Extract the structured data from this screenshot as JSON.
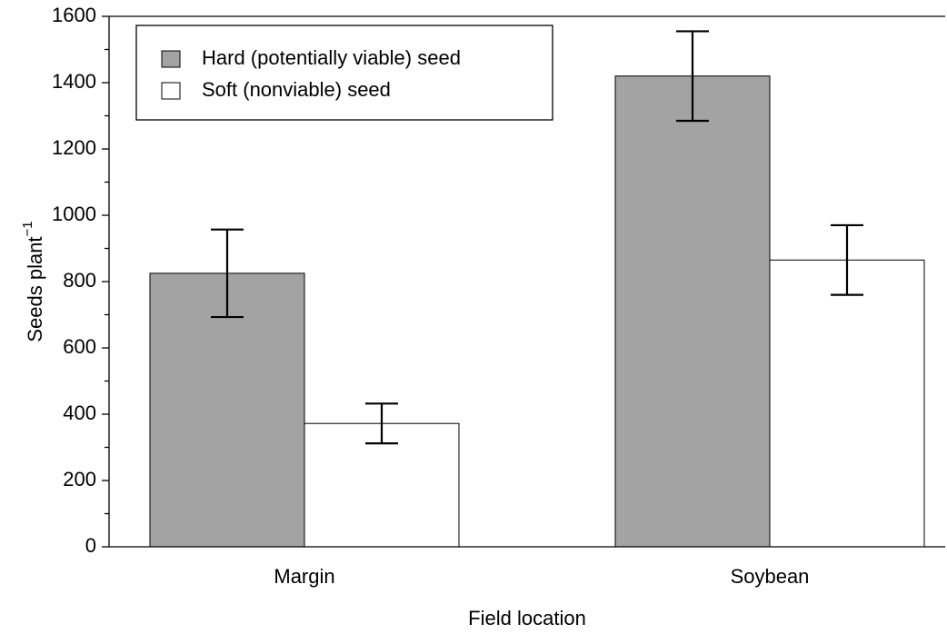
{
  "chart_data": {
    "type": "bar",
    "x_label": "Field location",
    "y_label": "Seeds plant",
    "y_label_superscript": "−1",
    "categories": [
      "Margin",
      "Soybean"
    ],
    "series": [
      {
        "name": "Hard (potentially viable) seed",
        "color": "#a3a3a3",
        "values": [
          825,
          1420
        ],
        "errors": [
          132,
          135
        ]
      },
      {
        "name": "Soft (nonviable) seed",
        "color": "#ffffff",
        "values": [
          372,
          865
        ],
        "errors": [
          60,
          105
        ]
      }
    ],
    "ylim": [
      0,
      1600
    ],
    "yticks": [
      0,
      200,
      400,
      600,
      800,
      1000,
      1200,
      1400,
      1600
    ],
    "y_minor_ticks": [
      100,
      300,
      500,
      700,
      900,
      1100,
      1300,
      1500
    ],
    "legend": "upper left"
  }
}
